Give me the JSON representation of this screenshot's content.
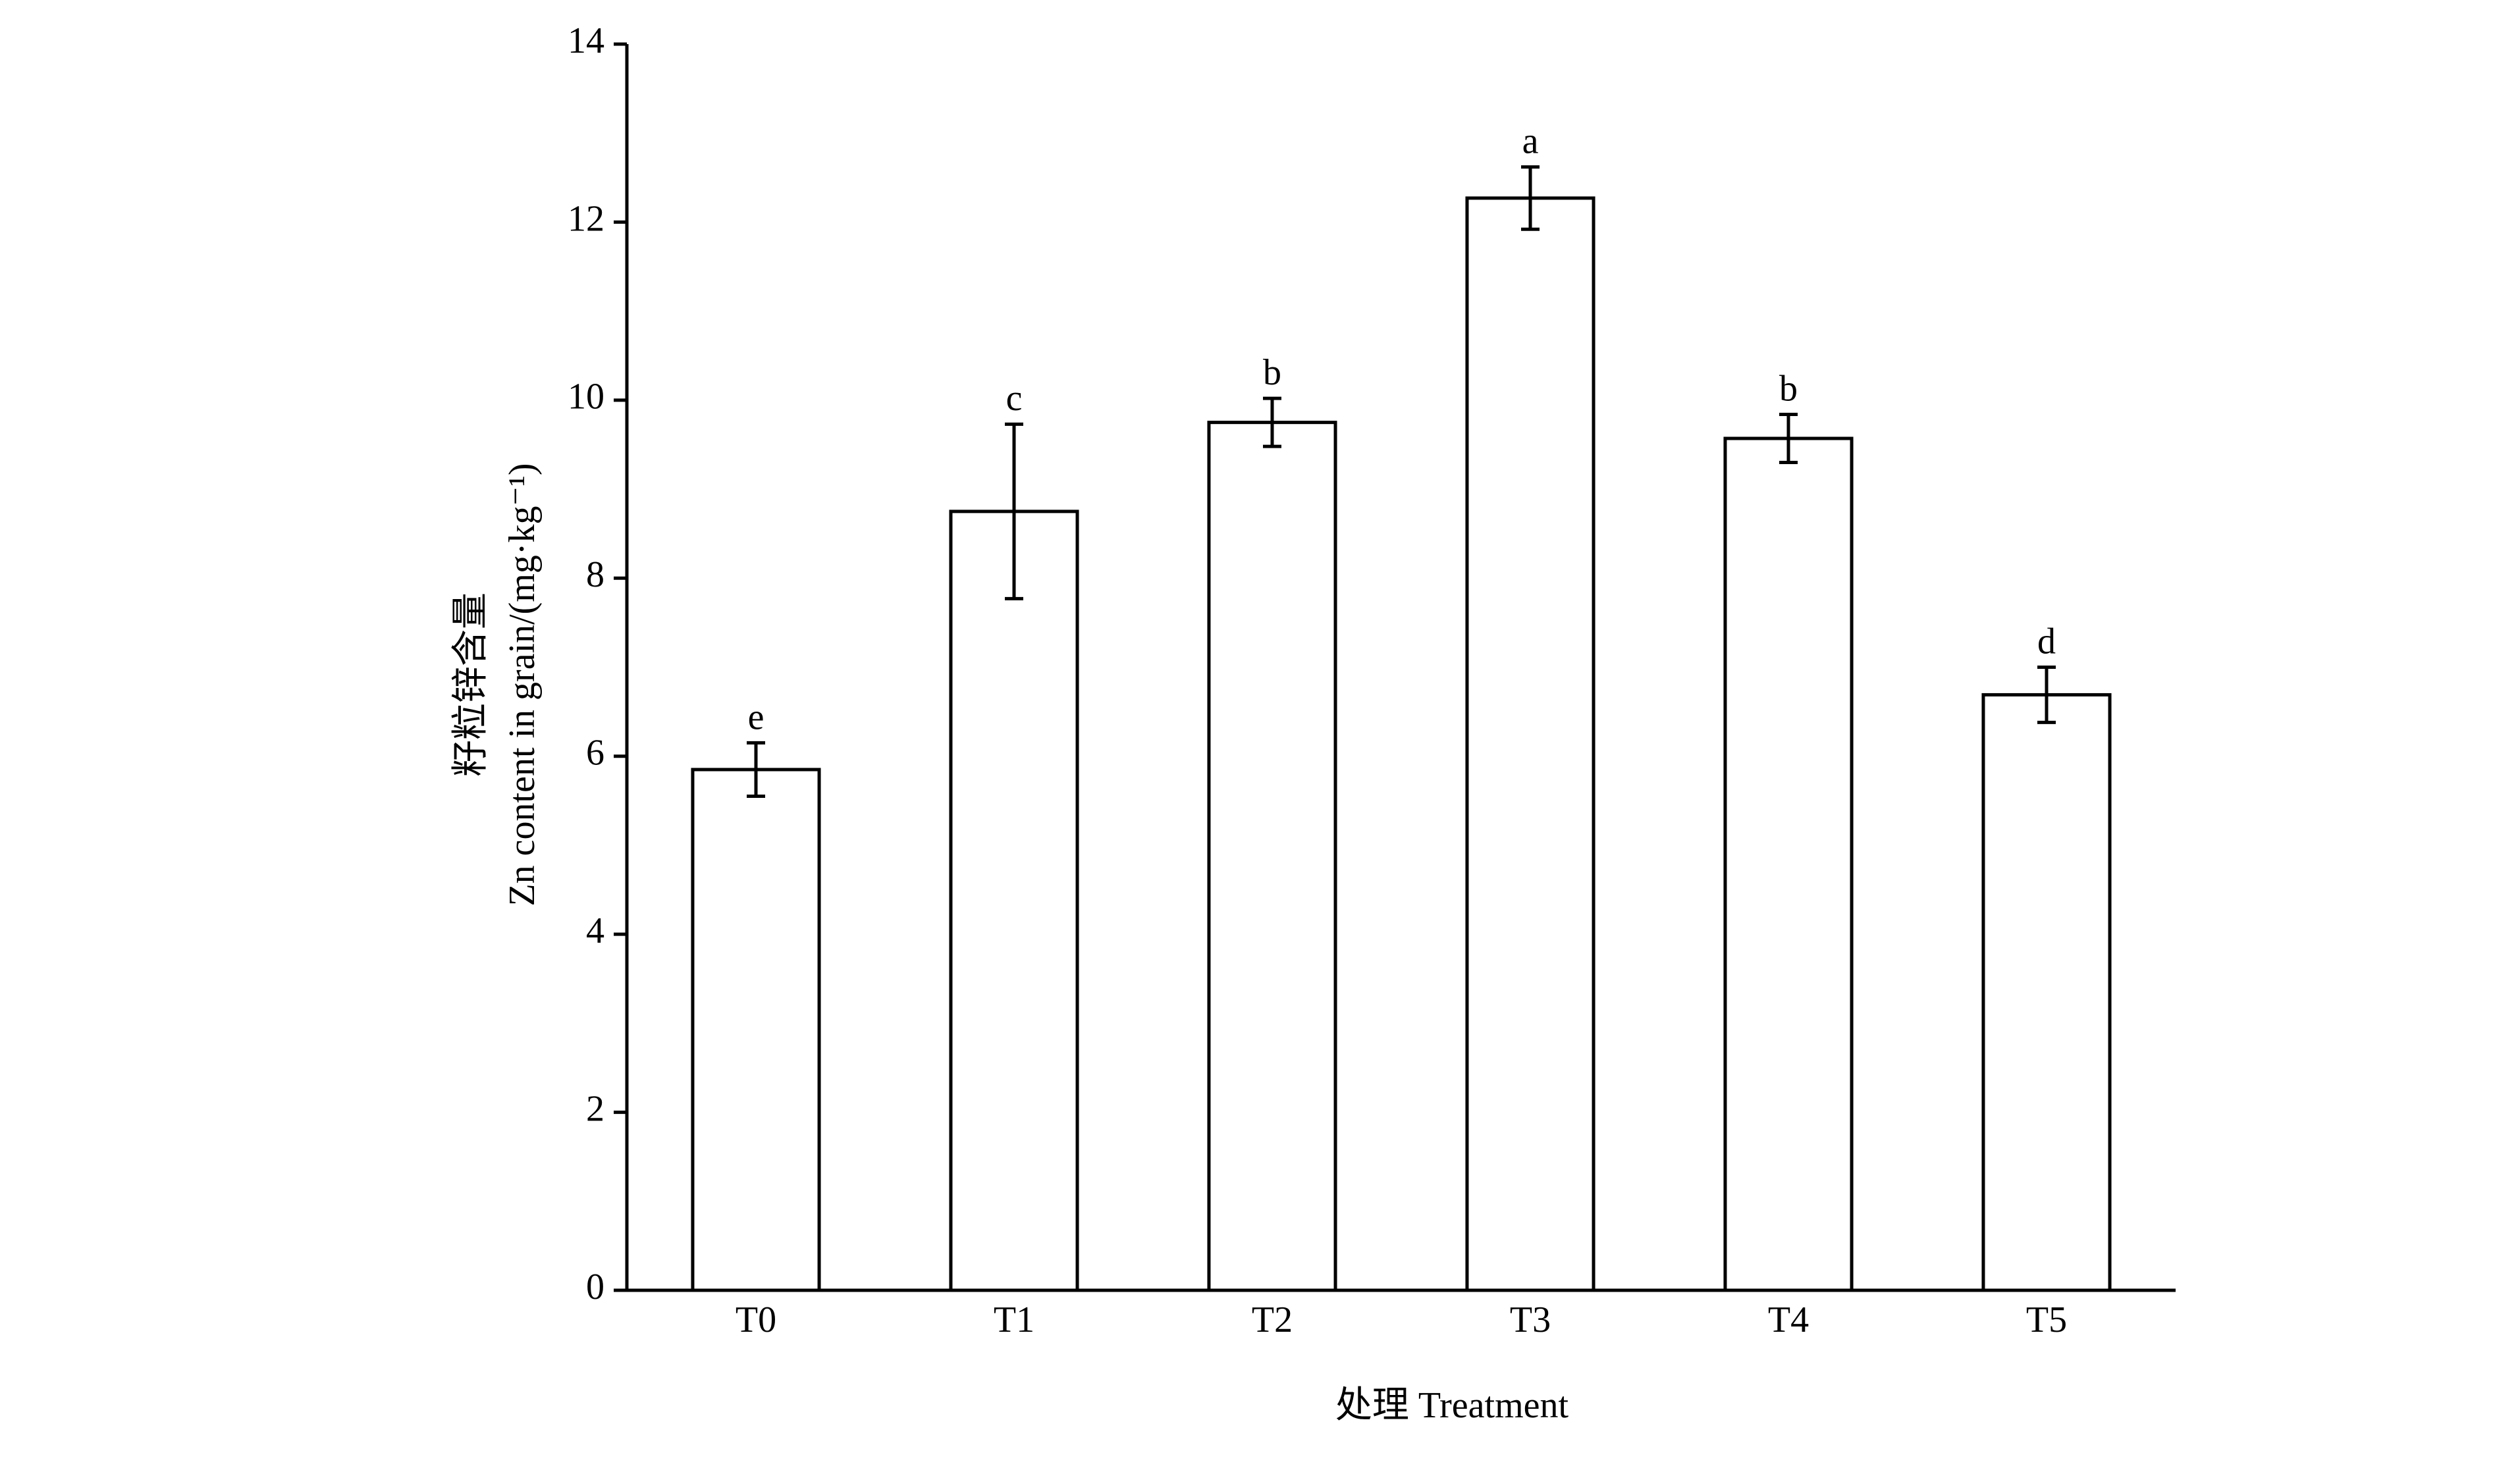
{
  "chart_data": {
    "type": "bar",
    "y_label_lines": [
      "籽粒锌含量",
      "Zn content in grain/(mg·kg⁻¹)"
    ],
    "x_label": "处理 Treatment",
    "categories": [
      "T0",
      "T1",
      "T2",
      "T3",
      "T4",
      "T5"
    ],
    "values": [
      5.85,
      8.75,
      9.75,
      12.27,
      9.57,
      6.69
    ],
    "errors": [
      0.3,
      0.98,
      0.27,
      0.35,
      0.27,
      0.31
    ],
    "significance_letters": [
      "e",
      "c",
      "b",
      "a",
      "b",
      "d"
    ],
    "color": "#ffffff",
    "ylim": [
      0,
      14
    ],
    "yticks": [
      0,
      2,
      4,
      6,
      8,
      10,
      12,
      14
    ],
    "grid": false
  }
}
